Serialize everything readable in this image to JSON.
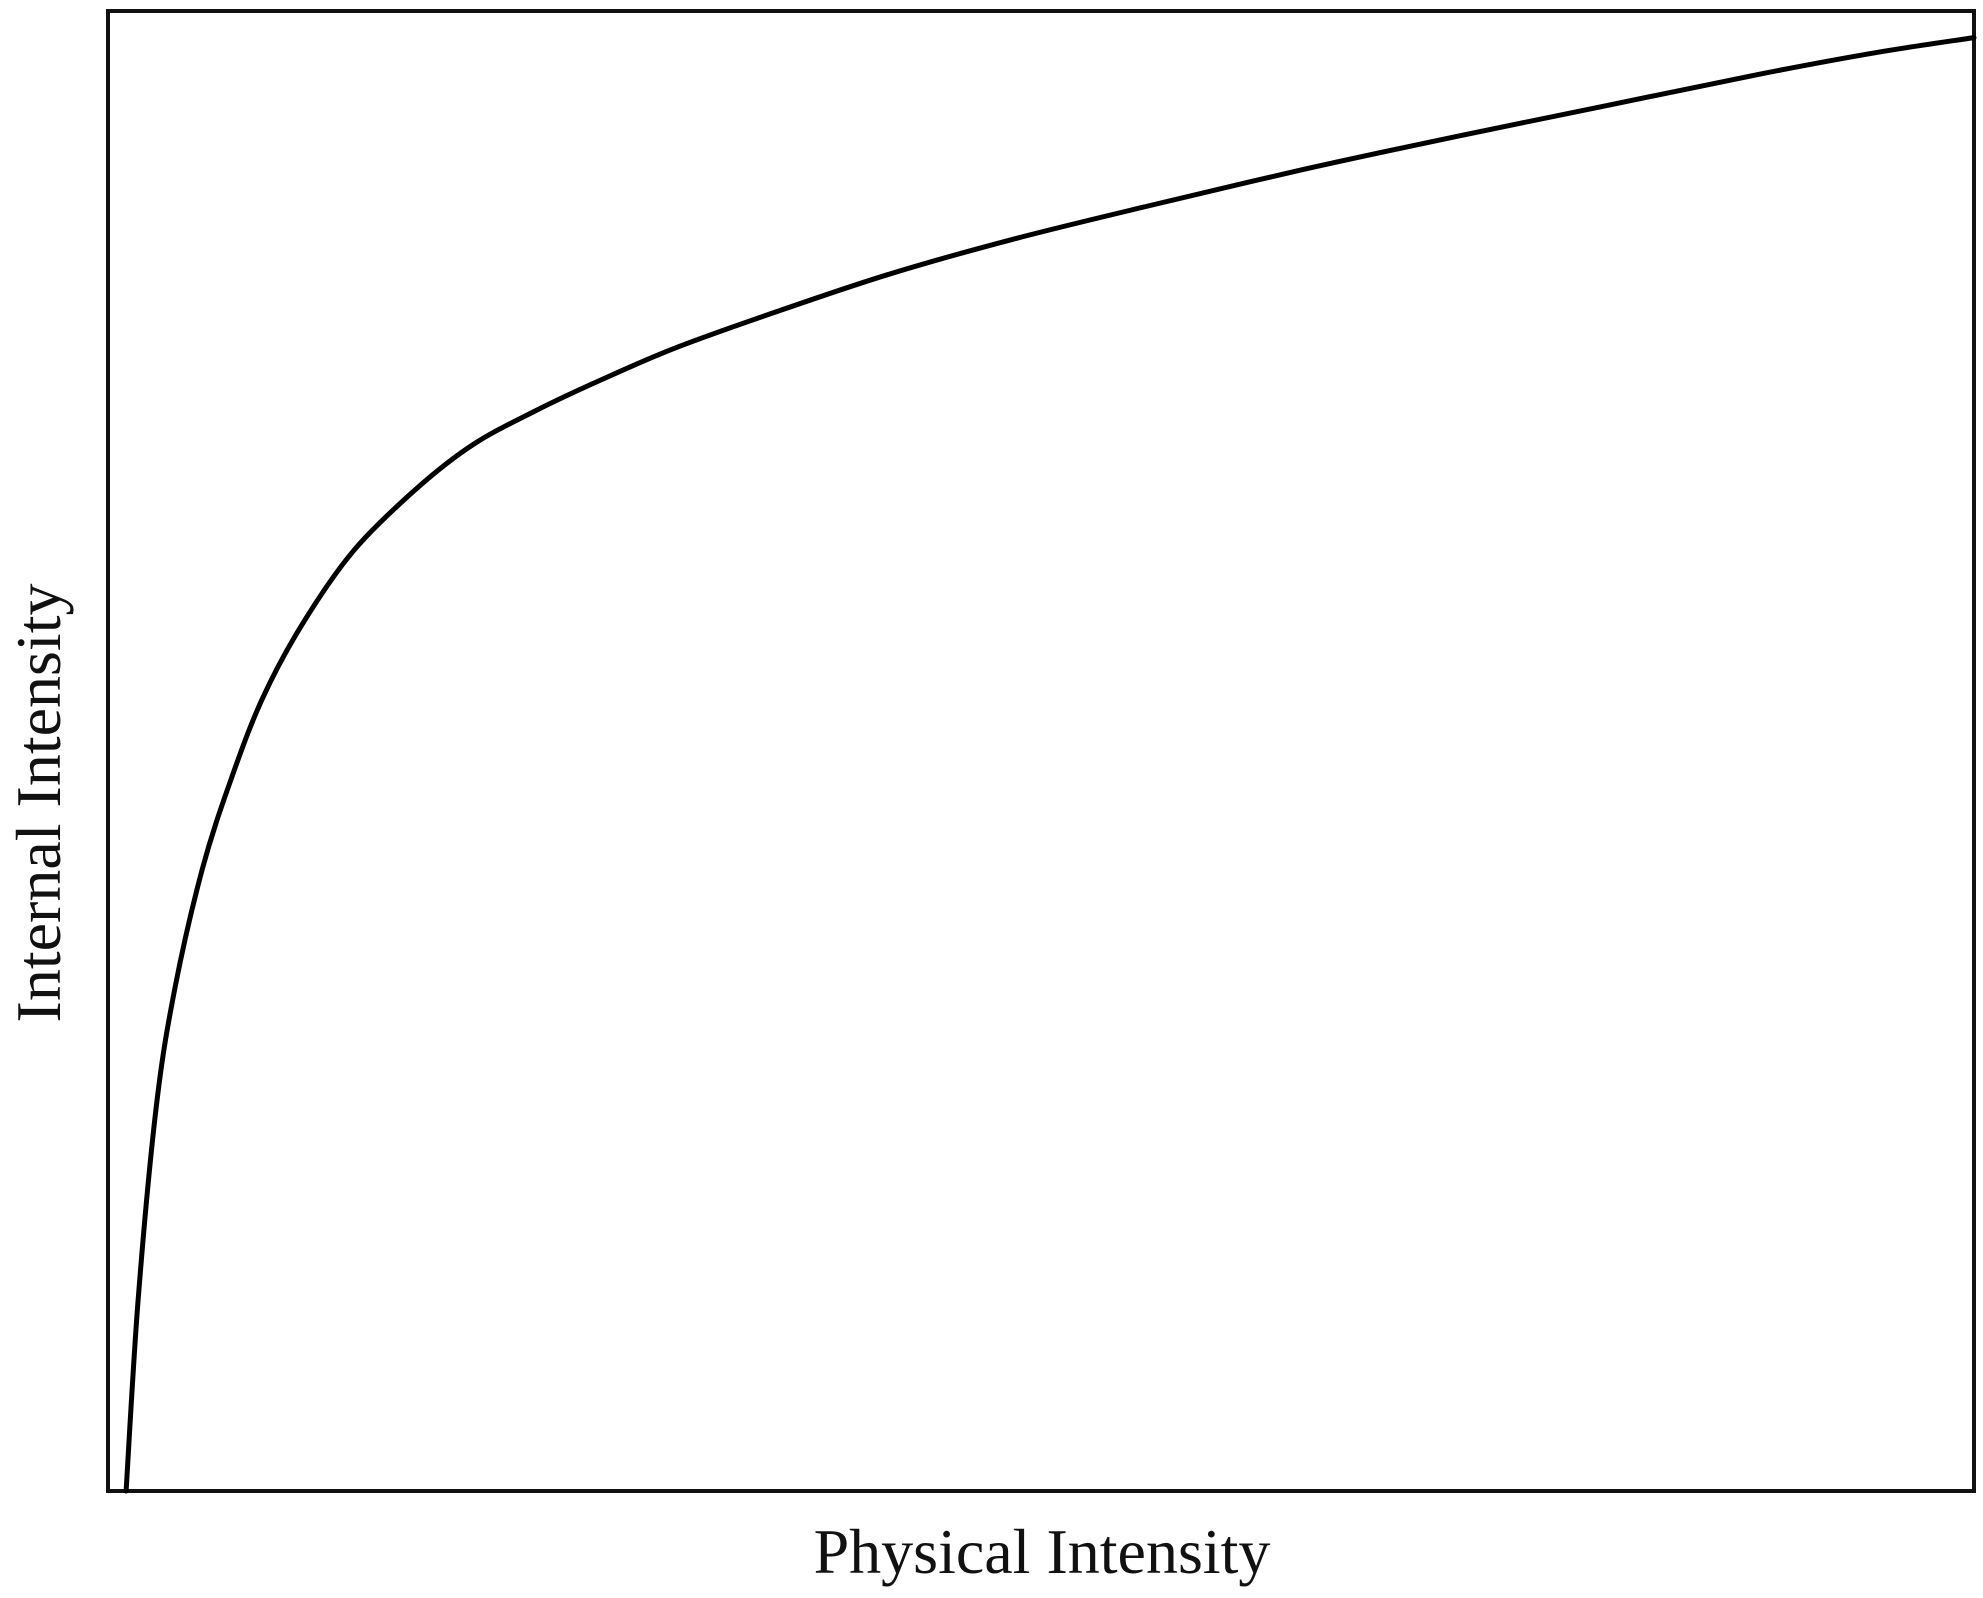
{
  "chart_data": {
    "type": "line",
    "title": "",
    "xlabel": "Physical Intensity",
    "ylabel": "Internal Intensity",
    "xlim": [
      0,
      1
    ],
    "ylim": [
      0,
      1
    ],
    "x_ticks": [],
    "y_ticks": [],
    "grid": false,
    "legend": "none",
    "colors": {
      "line": "#000000",
      "frame": "#111111",
      "background": "#ffffff"
    },
    "series": [
      {
        "x": [
          0.0097,
          0.0162,
          0.0259,
          0.0359,
          0.0505,
          0.0657,
          0.0826,
          0.1038,
          0.1314,
          0.1651,
          0.1956,
          0.2293,
          0.2629,
          0.3034,
          0.3541,
          0.4182,
          0.4857,
          0.5599,
          0.6409,
          0.7218,
          0.8029,
          0.8838,
          0.948,
          1.0
        ],
        "y": [
          0.0,
          0.13,
          0.26,
          0.34,
          0.42,
          0.48,
          0.535,
          0.585,
          0.635,
          0.677,
          0.707,
          0.73,
          0.75,
          0.772,
          0.795,
          0.822,
          0.846,
          0.869,
          0.893,
          0.915,
          0.936,
          0.957,
          0.972,
          0.982
        ]
      }
    ]
  }
}
